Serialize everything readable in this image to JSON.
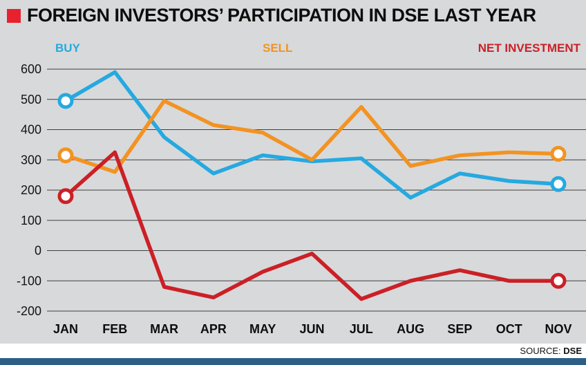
{
  "header": {
    "title": "FOREIGN INVESTORS’ PARTICIPATION IN DSE LAST YEAR",
    "bullet_color": "#e8212e"
  },
  "legend": [
    {
      "label": "BUY",
      "color": "#25a9e0"
    },
    {
      "label": "SELL",
      "color": "#f29322"
    },
    {
      "label": "NET INVESTMENT",
      "color": "#cb2026"
    }
  ],
  "footer": {
    "source_label": "SOURCE:",
    "source_value": "DSE",
    "bar_color": "#2d5f86"
  },
  "chart_data": {
    "type": "line",
    "title": "FOREIGN INVESTORS’ PARTICIPATION IN DSE LAST YEAR",
    "categories": [
      "JAN",
      "FEB",
      "MAR",
      "APR",
      "MAY",
      "JUN",
      "JUL",
      "AUG",
      "SEP",
      "OCT",
      "NOV"
    ],
    "series": [
      {
        "name": "BUY",
        "color": "#25a9e0",
        "values": [
          495,
          590,
          375,
          255,
          315,
          295,
          305,
          175,
          255,
          230,
          220
        ]
      },
      {
        "name": "SELL",
        "color": "#f29322",
        "values": [
          315,
          260,
          495,
          415,
          390,
          300,
          475,
          280,
          315,
          325,
          320
        ]
      },
      {
        "name": "NET INVESTMENT",
        "color": "#cb2026",
        "values": [
          180,
          325,
          -120,
          -155,
          -70,
          -10,
          -160,
          -100,
          -65,
          -100,
          -100
        ]
      }
    ],
    "ylim": [
      -200,
      600
    ],
    "ytick_step": 100,
    "grid": true,
    "legend_position": "top",
    "endpoint_markers": "first-and-last"
  }
}
